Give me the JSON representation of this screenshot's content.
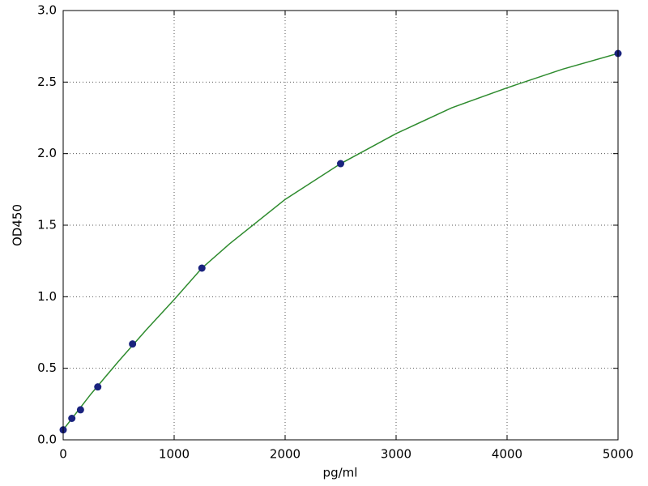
{
  "chart_data": {
    "type": "scatter",
    "xlabel": "pg/ml",
    "ylabel": "OD450",
    "series": [
      {
        "type": "scatter",
        "color": "#1a237e",
        "x": [
          0,
          78,
          156,
          312,
          625,
          1250,
          2500,
          5000
        ],
        "values": [
          0.07,
          0.15,
          0.21,
          0.37,
          0.67,
          1.2,
          1.93,
          2.7
        ]
      },
      {
        "type": "line",
        "color": "#2e8b2e",
        "x": [
          0,
          250,
          500,
          750,
          1000,
          1250,
          1500,
          2000,
          2500,
          3000,
          3500,
          4000,
          4500,
          5000
        ],
        "values": [
          0.07,
          0.32,
          0.55,
          0.77,
          0.98,
          1.2,
          1.37,
          1.68,
          1.93,
          2.14,
          2.32,
          2.46,
          2.59,
          2.7
        ]
      }
    ],
    "xlim": [
      0,
      5000
    ],
    "xticks": [
      0,
      1000,
      2000,
      3000,
      4000,
      5000
    ],
    "ylim": [
      0,
      3
    ],
    "yticks": [
      {
        "value": 0,
        "label": "0.0"
      },
      0.5,
      {
        "value": 1,
        "label": "1.0"
      },
      1.5,
      {
        "value": 2,
        "label": "2.0"
      },
      2.5,
      {
        "value": 3,
        "label": "3.0"
      }
    ],
    "grid": true
  }
}
